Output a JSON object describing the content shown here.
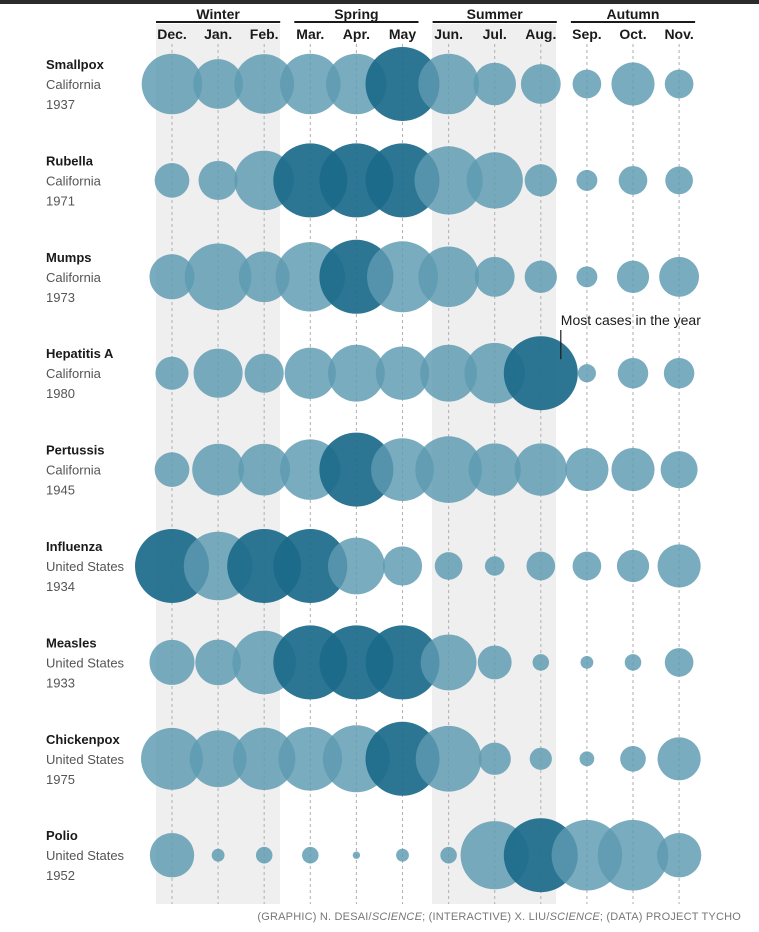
{
  "chart_data": {
    "type": "bubble-grid",
    "seasons": [
      {
        "name": "Winter",
        "months": [
          "Dec.",
          "Jan.",
          "Feb."
        ]
      },
      {
        "name": "Spring",
        "months": [
          "Mar.",
          "Apr.",
          "May"
        ]
      },
      {
        "name": "Summer",
        "months": [
          "Jun.",
          "Jul.",
          "Aug."
        ]
      },
      {
        "name": "Autumn",
        "months": [
          "Sep.",
          "Oct.",
          "Nov."
        ]
      }
    ],
    "months": [
      "Dec.",
      "Jan.",
      "Feb.",
      "Mar.",
      "Apr.",
      "May",
      "Jun.",
      "Jul.",
      "Aug.",
      "Sep.",
      "Oct.",
      "Nov."
    ],
    "value_note": "values are relative case counts, 100 = month with the most cases in that disease-year",
    "rows": [
      {
        "disease": "Smallpox",
        "place": "California",
        "year": "1937",
        "values": [
          67,
          45,
          65,
          67,
          67,
          100,
          67,
          33,
          29,
          15,
          34,
          15
        ]
      },
      {
        "disease": "Rubella",
        "place": "California",
        "year": "1971",
        "values": [
          22,
          28,
          65,
          100,
          100,
          100,
          85,
          58,
          19,
          8,
          15,
          14
        ]
      },
      {
        "disease": "Mumps",
        "place": "California",
        "year": "1973",
        "values": [
          37,
          81,
          47,
          88,
          100,
          92,
          67,
          29,
          19,
          8,
          19,
          29
        ]
      },
      {
        "disease": "Hepatitis A",
        "place": "California",
        "year": "1980",
        "values": [
          20,
          44,
          28,
          48,
          59,
          52,
          59,
          67,
          100,
          6,
          17,
          17
        ]
      },
      {
        "disease": "Pertussis",
        "place": "California",
        "year": "1945",
        "values": [
          22,
          49,
          49,
          67,
          100,
          72,
          81,
          50,
          50,
          34,
          34,
          25
        ]
      },
      {
        "disease": "Influenza",
        "place": "United States",
        "year": "1934",
        "values": [
          100,
          86,
          100,
          100,
          59,
          28,
          14,
          7,
          15,
          15,
          19,
          34
        ]
      },
      {
        "disease": "Measles",
        "place": "United States",
        "year": "1933",
        "values": [
          37,
          38,
          74,
          100,
          100,
          100,
          57,
          21,
          5,
          3,
          5,
          15
        ]
      },
      {
        "disease": "Chickenpox",
        "place": "United States",
        "year": "1975",
        "values": [
          70,
          59,
          71,
          74,
          82,
          100,
          79,
          19,
          9,
          4,
          12,
          34
        ]
      },
      {
        "disease": "Polio",
        "place": "United States",
        "year": "1952",
        "values": [
          36,
          3,
          5,
          5,
          1,
          3,
          5,
          85,
          100,
          91,
          91,
          36
        ]
      }
    ],
    "annotation": "Most cases in the year",
    "colors": {
      "normal": "#5d9ab1",
      "peak": "#1b6a8a",
      "winter_band": "#efefef",
      "summer_band": "#efefef",
      "grid": "#b5b5b5"
    }
  },
  "credit": {
    "graphic_prefix": "(GRAPHIC) N. DESAI/",
    "graphic_outlet": "SCIENCE",
    "interactive_prefix": "; (INTERACTIVE) X. LIU/",
    "interactive_outlet": "SCIENCE",
    "data_prefix": "; (DATA) PROJECT TYCHO"
  }
}
